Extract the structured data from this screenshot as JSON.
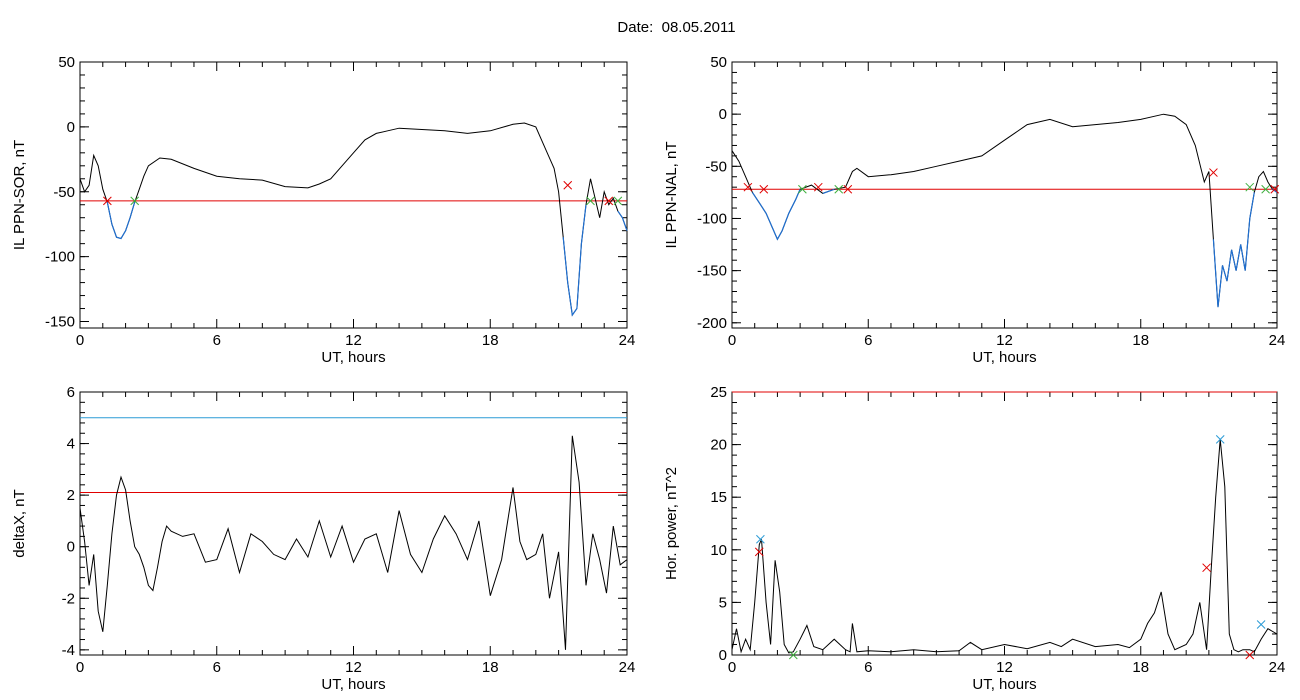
{
  "title": "Date:  08.05.2011",
  "colors": {
    "trace": "#000000",
    "blue": "#1f6fd0",
    "red": "#e00000",
    "green": "#3fb03f",
    "cyan": "#2b9bd6"
  },
  "chart_data": [
    {
      "type": "line",
      "ylabel": "IL PPN-SOR, nT",
      "xlabel": "UT, hours",
      "xlim": [
        0,
        24
      ],
      "ylim": [
        -155,
        50
      ],
      "xticks": [
        0,
        6,
        12,
        18,
        24
      ],
      "yticks": [
        -150,
        -100,
        -50,
        0,
        50
      ],
      "ytick_labels": [
        "-150",
        "-100",
        "-50",
        "0",
        "50"
      ],
      "series": [
        {
          "x": [
            0,
            0.2,
            0.4,
            0.6,
            0.8,
            1.0,
            1.2,
            1.4,
            1.6,
            1.8,
            2.0,
            2.2,
            2.4,
            2.6,
            2.8,
            3.0,
            3.5,
            4,
            5,
            6,
            7,
            8,
            9,
            10,
            10.5,
            11,
            11.5,
            12,
            12.5,
            13,
            13.5,
            14,
            15,
            16,
            17,
            18,
            19,
            19.5,
            20,
            20.5,
            20.8,
            21,
            21.2,
            21.4,
            21.6,
            21.8,
            22.0,
            22.2,
            22.4,
            22.6,
            22.8,
            23.0,
            23.2,
            23.4,
            23.6,
            23.8,
            24
          ],
          "y": [
            -40,
            -50,
            -45,
            -22,
            -30,
            -48,
            -58,
            -75,
            -85,
            -86,
            -80,
            -70,
            -58,
            -48,
            -38,
            -30,
            -24,
            -25,
            -32,
            -38,
            -40,
            -41,
            -46,
            -47,
            -44,
            -40,
            -30,
            -20,
            -10,
            -5,
            -3,
            -1,
            -2,
            -3,
            -5,
            -3,
            2,
            3,
            0,
            -20,
            -32,
            -50,
            -85,
            -120,
            -145,
            -140,
            -90,
            -60,
            -40,
            -55,
            -70,
            -50,
            -60,
            -55,
            -65,
            -70,
            -80
          ]
        }
      ],
      "hlines": [
        {
          "y": -57,
          "color": "red"
        }
      ],
      "markers": [
        {
          "x": 1.2,
          "y": -57,
          "color": "red"
        },
        {
          "x": 2.4,
          "y": -57,
          "color": "green"
        },
        {
          "x": 21.4,
          "y": -45,
          "color": "red"
        },
        {
          "x": 22.4,
          "y": -57,
          "color": "green"
        },
        {
          "x": 23.2,
          "y": -57,
          "color": "red"
        },
        {
          "x": 23.6,
          "y": -57,
          "color": "green"
        }
      ]
    },
    {
      "type": "line",
      "ylabel": "IL PPN-NAL, nT",
      "xlabel": "UT, hours",
      "xlim": [
        0,
        24
      ],
      "ylim": [
        -205,
        50
      ],
      "xticks": [
        0,
        6,
        12,
        18,
        24
      ],
      "yticks": [
        -200,
        -150,
        -100,
        -50,
        0,
        50
      ],
      "ytick_labels": [
        "-200",
        "-150",
        "-100",
        "-50",
        "0",
        "50"
      ],
      "series": [
        {
          "x": [
            0,
            0.3,
            0.6,
            0.9,
            1.2,
            1.5,
            1.8,
            2.0,
            2.2,
            2.5,
            2.8,
            3.0,
            3.5,
            4.0,
            4.5,
            5.0,
            5.3,
            5.5,
            6,
            7,
            8,
            9,
            10,
            11,
            12,
            13,
            14,
            15,
            16,
            17,
            18,
            19,
            19.5,
            20,
            20.4,
            20.8,
            21.0,
            21.2,
            21.4,
            21.6,
            21.8,
            22.0,
            22.2,
            22.4,
            22.6,
            22.8,
            23.0,
            23.2,
            23.4,
            23.6,
            23.8,
            24
          ],
          "y": [
            -35,
            -45,
            -60,
            -75,
            -85,
            -95,
            -110,
            -120,
            -112,
            -95,
            -82,
            -72,
            -68,
            -76,
            -72,
            -70,
            -55,
            -52,
            -60,
            -58,
            -55,
            -50,
            -45,
            -40,
            -25,
            -10,
            -5,
            -12,
            -10,
            -8,
            -5,
            0,
            -2,
            -10,
            -30,
            -65,
            -55,
            -120,
            -185,
            -145,
            -160,
            -130,
            -150,
            -125,
            -150,
            -100,
            -75,
            -60,
            -55,
            -65,
            -72,
            -75
          ]
        }
      ],
      "hlines": [
        {
          "y": -72,
          "color": "red"
        }
      ],
      "markers": [
        {
          "x": 0.7,
          "y": -70,
          "color": "red"
        },
        {
          "x": 1.4,
          "y": -72,
          "color": "red"
        },
        {
          "x": 3.1,
          "y": -72,
          "color": "green"
        },
        {
          "x": 3.8,
          "y": -70,
          "color": "red"
        },
        {
          "x": 4.7,
          "y": -72,
          "color": "green"
        },
        {
          "x": 5.1,
          "y": -72,
          "color": "red"
        },
        {
          "x": 21.2,
          "y": -56,
          "color": "red"
        },
        {
          "x": 22.8,
          "y": -70,
          "color": "green"
        },
        {
          "x": 23.5,
          "y": -72,
          "color": "green"
        },
        {
          "x": 23.9,
          "y": -72,
          "color": "red"
        }
      ]
    },
    {
      "type": "line",
      "ylabel": "deltaX, nT",
      "xlabel": "UT, hours",
      "xlim": [
        0,
        24
      ],
      "ylim": [
        -4.2,
        6
      ],
      "xticks": [
        0,
        6,
        12,
        18,
        24
      ],
      "yticks": [
        -4,
        -2,
        0,
        2,
        4,
        6
      ],
      "ytick_labels": [
        "-4",
        "-2",
        "0",
        "2",
        "4",
        "6"
      ],
      "series": [
        {
          "x": [
            0,
            0.2,
            0.4,
            0.6,
            0.8,
            1.0,
            1.2,
            1.4,
            1.6,
            1.8,
            2.0,
            2.2,
            2.4,
            2.6,
            2.8,
            3.0,
            3.2,
            3.4,
            3.6,
            3.8,
            4.0,
            4.5,
            5.0,
            5.5,
            6.0,
            6.5,
            7.0,
            7.5,
            8.0,
            8.5,
            9.0,
            9.5,
            10.0,
            10.5,
            11.0,
            11.5,
            12.0,
            12.5,
            13.0,
            13.5,
            14.0,
            14.5,
            15.0,
            15.5,
            16.0,
            16.5,
            17.0,
            17.5,
            18.0,
            18.5,
            19.0,
            19.3,
            19.6,
            20.0,
            20.3,
            20.6,
            21.0,
            21.3,
            21.6,
            21.9,
            22.2,
            22.5,
            22.8,
            23.1,
            23.4,
            23.7,
            24
          ],
          "y": [
            1.5,
            0.2,
            -1.5,
            -0.3,
            -2.5,
            -3.3,
            -1.5,
            0.5,
            2.0,
            2.7,
            2.2,
            1.0,
            0.0,
            -0.3,
            -0.8,
            -1.5,
            -1.7,
            -0.8,
            0.2,
            0.8,
            0.6,
            0.4,
            0.5,
            -0.6,
            -0.5,
            0.7,
            -1.0,
            0.5,
            0.2,
            -0.3,
            -0.5,
            0.3,
            -0.4,
            1.0,
            -0.4,
            0.8,
            -0.6,
            0.3,
            0.5,
            -1.0,
            1.4,
            -0.3,
            -1.0,
            0.3,
            1.2,
            0.5,
            -0.5,
            1.0,
            -1.9,
            -0.5,
            2.3,
            0.2,
            -0.5,
            -0.3,
            0.5,
            -2.0,
            -0.2,
            -4.0,
            4.3,
            2.5,
            -1.5,
            0.5,
            -0.5,
            -1.8,
            0.8,
            -0.7,
            -0.5
          ]
        }
      ],
      "hlines": [
        {
          "y": 5,
          "color": "cyan"
        },
        {
          "y": 2.1,
          "color": "red"
        }
      ],
      "markers": []
    },
    {
      "type": "line",
      "ylabel": "Hor. power, nT^2",
      "xlabel": "UT, hours",
      "xlim": [
        0,
        24
      ],
      "ylim": [
        0,
        25
      ],
      "xticks": [
        0,
        6,
        12,
        18,
        24
      ],
      "yticks": [
        0,
        5,
        10,
        15,
        20,
        25
      ],
      "ytick_labels": [
        "0",
        "5",
        "10",
        "15",
        "20",
        "25"
      ],
      "series": [
        {
          "x": [
            0,
            0.2,
            0.4,
            0.6,
            0.8,
            1.0,
            1.2,
            1.3,
            1.5,
            1.7,
            1.9,
            2.1,
            2.3,
            2.5,
            2.7,
            3.0,
            3.3,
            3.6,
            4.0,
            4.5,
            5.0,
            5.2,
            5.3,
            5.5,
            6,
            7,
            8,
            9,
            10,
            10.5,
            11,
            12,
            13,
            14,
            14.5,
            15,
            16,
            17,
            17.5,
            18,
            18.3,
            18.6,
            18.9,
            19.2,
            19.5,
            20,
            20.3,
            20.6,
            20.9,
            21.1,
            21.3,
            21.5,
            21.7,
            21.9,
            22.1,
            22.3,
            22.5,
            22.8,
            23.0,
            23.3,
            23.6,
            24
          ],
          "y": [
            0.5,
            2.5,
            0.3,
            1.5,
            0.5,
            5.0,
            10.5,
            11.0,
            5.0,
            1.0,
            9.0,
            6.0,
            1.0,
            0.2,
            0.3,
            1.5,
            2.8,
            0.8,
            0.5,
            1.5,
            0.5,
            0.3,
            3.0,
            0.3,
            0.4,
            0.3,
            0.5,
            0.3,
            0.4,
            1.2,
            0.5,
            1.0,
            0.6,
            1.2,
            0.8,
            1.5,
            0.8,
            1.0,
            0.7,
            1.5,
            3.0,
            4.0,
            6.0,
            2.0,
            0.5,
            1.0,
            2.0,
            5.0,
            0.5,
            8.0,
            15.0,
            20.5,
            16.0,
            2.0,
            0.5,
            0.3,
            0.5,
            0.5,
            0.3,
            1.5,
            2.5,
            2.0
          ]
        }
      ],
      "hlines": [
        {
          "y": 25,
          "color": "red"
        }
      ],
      "markers": [
        {
          "x": 1.25,
          "y": 11.0,
          "color": "cyan"
        },
        {
          "x": 1.2,
          "y": 9.8,
          "color": "red"
        },
        {
          "x": 2.7,
          "y": 0.0,
          "color": "green"
        },
        {
          "x": 20.9,
          "y": 8.3,
          "color": "red"
        },
        {
          "x": 21.5,
          "y": 20.5,
          "color": "cyan"
        },
        {
          "x": 22.8,
          "y": 0.0,
          "color": "red"
        },
        {
          "x": 23.3,
          "y": 2.9,
          "color": "cyan"
        }
      ]
    }
  ]
}
